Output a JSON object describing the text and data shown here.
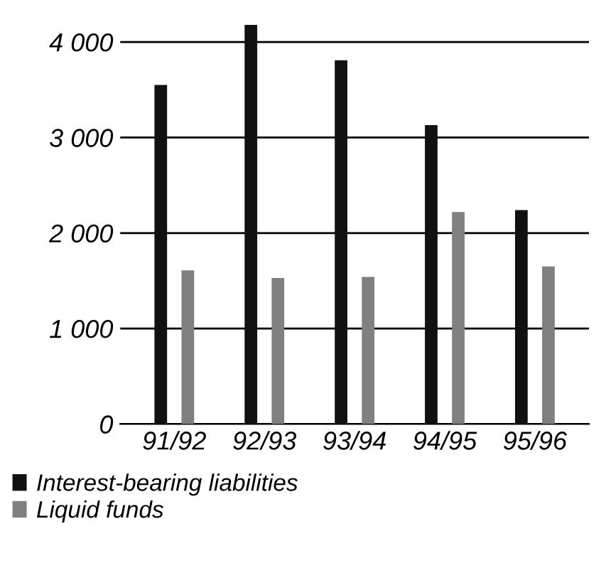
{
  "chart_data": {
    "type": "bar",
    "categories": [
      "91/92",
      "92/93",
      "93/94",
      "94/95",
      "95/96"
    ],
    "series": [
      {
        "name": "Interest-bearing liabilities",
        "color": "#111111",
        "values": [
          3550,
          4180,
          3810,
          3130,
          2240
        ]
      },
      {
        "name": "Liquid funds",
        "color": "#808080",
        "values": [
          1610,
          1530,
          1540,
          2220,
          1650
        ]
      }
    ],
    "ylim": [
      0,
      4200
    ],
    "yticks": [
      {
        "value": 0,
        "label": "0"
      },
      {
        "value": 1000,
        "label": "1 000"
      },
      {
        "value": 2000,
        "label": "2 000"
      },
      {
        "value": 3000,
        "label": "3 000"
      },
      {
        "value": 4000,
        "label": "4 000"
      }
    ],
    "grid": "y",
    "legend": "bottom"
  }
}
